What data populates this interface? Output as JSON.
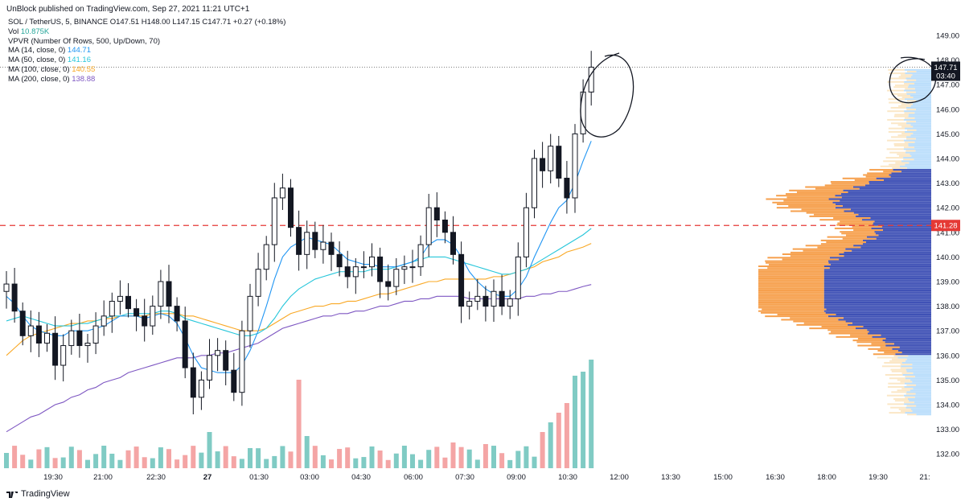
{
  "header": {
    "published": "UnBlock published on TradingView.com, Sep 27, 2021 11:21 UTC+1"
  },
  "legend": {
    "symbol_line": "SOL / TetherUS, 5, BINANCE  O147.51  H148.00  L147.15  C147.71  +0.27 (+0.18%)",
    "vol_label": "Vol",
    "vol_value": "10.875K",
    "vpvr": "VPVR (Number Of Rows, 500, Up/Down, 70)",
    "ma14_label": "MA (14, close, 0)",
    "ma14_value": "144.71",
    "ma50_label": "MA (50, close, 0)",
    "ma50_value": "141.16",
    "ma100_label": "MA (100, close, 0)",
    "ma100_value": "140.55",
    "ma200_label": "MA (200, close, 0)",
    "ma200_value": "138.88"
  },
  "footer": {
    "brand": "TradingView"
  },
  "colors": {
    "ma14": "#2196f3",
    "ma50": "#26c6da",
    "ma100": "#f9a825",
    "ma200": "#7e57c2",
    "vol_up": "#80cbc4",
    "vol_down": "#f4a5a5",
    "vp_up": "#f6a04d",
    "vp_down": "#3f51b5",
    "vp_va_up": "#fbe7c6",
    "vp_va_down": "#bbdefb",
    "dashed_line": "#e53935",
    "annotation": "#131722"
  },
  "chart_data": {
    "type": "candlestick",
    "y_ticks": [
      "149.00",
      "148.00",
      "147.00",
      "146.00",
      "145.00",
      "144.00",
      "143.00",
      "142.00",
      "141.00",
      "140.00",
      "139.00",
      "138.00",
      "137.00",
      "136.00",
      "135.00",
      "134.00",
      "133.00",
      "132.00"
    ],
    "ylim": [
      131.5,
      149.5
    ],
    "x_ticks": [
      "19:30",
      "21:00",
      "22:30",
      "27",
      "01:30",
      "03:00",
      "04:30",
      "06:00",
      "07:30",
      "09:00",
      "10:30",
      "12:00",
      "13:30",
      "15:00",
      "16:30",
      "18:00",
      "19:30",
      "21:"
    ],
    "last_price_label": "147.71",
    "countdown_label": "03:40",
    "level_label": "141.28",
    "level_value": 141.28,
    "last_price": 147.71,
    "close_path": [
      138.9,
      137.8,
      136.8,
      137.2,
      136.5,
      136.9,
      135.6,
      136.4,
      137.0,
      136.4,
      136.5,
      137.2,
      137.6,
      138.2,
      138.4,
      137.9,
      137.6,
      137.2,
      138.0,
      139.0,
      138.0,
      137.4,
      135.5,
      134.3,
      135.0,
      136.0,
      136.2,
      135.4,
      134.5,
      137.0,
      138.4,
      139.5,
      140.5,
      142.4,
      142.8,
      141.2,
      140.1,
      141.0,
      140.3,
      140.6,
      140.1,
      139.6,
      139.2,
      139.6,
      139.6,
      140.0,
      139.0,
      138.8,
      139.5,
      139.6,
      139.6,
      140.5,
      142.0,
      141.5,
      141.0,
      140.1,
      138.0,
      138.2,
      138.4,
      138.0,
      138.6,
      138.0,
      138.3,
      140.0,
      142.0,
      144.0,
      143.5,
      144.5,
      143.2,
      142.4,
      145.0,
      146.7,
      147.71
    ],
    "ma14": [
      138.4,
      138.1,
      137.6,
      137.2,
      137.0,
      136.9,
      136.8,
      136.8,
      137.0,
      137.0,
      137.0,
      137.1,
      137.2,
      137.4,
      137.6,
      137.6,
      137.6,
      137.5,
      137.6,
      137.7,
      137.6,
      137.3,
      136.7,
      136.0,
      135.5,
      135.4,
      135.3,
      135.3,
      135.3,
      135.6,
      136.2,
      137.0,
      138.0,
      139.1,
      140.0,
      140.4,
      140.6,
      140.8,
      140.7,
      140.6,
      140.5,
      140.2,
      139.9,
      139.8,
      139.7,
      139.7,
      139.6,
      139.6,
      139.6,
      139.7,
      139.8,
      140.0,
      140.5,
      140.7,
      140.7,
      140.5,
      140.0,
      139.4,
      139.0,
      138.7,
      138.5,
      138.4,
      138.4,
      138.7,
      139.2,
      140.0,
      140.7,
      141.4,
      142.0,
      142.3,
      143.0,
      143.9,
      144.71
    ],
    "ma50": [
      137.4,
      137.5,
      137.6,
      137.5,
      137.4,
      137.3,
      137.2,
      137.2,
      137.2,
      137.3,
      137.3,
      137.4,
      137.5,
      137.6,
      137.6,
      137.7,
      137.7,
      137.7,
      137.7,
      137.8,
      137.8,
      137.7,
      137.5,
      137.4,
      137.3,
      137.2,
      137.1,
      137.0,
      136.9,
      136.8,
      136.8,
      136.9,
      137.1,
      137.5,
      138.0,
      138.4,
      138.7,
      138.9,
      139.1,
      139.2,
      139.3,
      139.4,
      139.4,
      139.4,
      139.4,
      139.5,
      139.5,
      139.5,
      139.6,
      139.7,
      139.8,
      139.9,
      140.0,
      140.0,
      140.0,
      139.9,
      139.8,
      139.7,
      139.6,
      139.5,
      139.4,
      139.3,
      139.3,
      139.4,
      139.5,
      139.7,
      139.9,
      140.1,
      140.3,
      140.5,
      140.7,
      140.9,
      141.16
    ],
    "ma100": [
      136.0,
      136.3,
      136.6,
      136.8,
      136.9,
      137.0,
      137.1,
      137.2,
      137.3,
      137.3,
      137.4,
      137.4,
      137.5,
      137.5,
      137.6,
      137.6,
      137.6,
      137.6,
      137.7,
      137.7,
      137.7,
      137.7,
      137.6,
      137.6,
      137.5,
      137.4,
      137.3,
      137.2,
      137.1,
      137.0,
      137.0,
      137.0,
      137.1,
      137.3,
      137.5,
      137.7,
      137.8,
      137.9,
      138.0,
      138.0,
      138.1,
      138.1,
      138.2,
      138.2,
      138.3,
      138.4,
      138.5,
      138.5,
      138.6,
      138.7,
      138.8,
      138.9,
      139.0,
      139.0,
      139.1,
      139.1,
      139.1,
      139.1,
      139.1,
      139.1,
      139.2,
      139.2,
      139.3,
      139.4,
      139.5,
      139.6,
      139.8,
      139.9,
      140.0,
      140.2,
      140.3,
      140.4,
      140.55
    ],
    "ma200": [
      132.9,
      133.1,
      133.3,
      133.5,
      133.6,
      133.8,
      134.0,
      134.1,
      134.3,
      134.4,
      134.6,
      134.7,
      134.9,
      135.0,
      135.1,
      135.3,
      135.4,
      135.5,
      135.6,
      135.7,
      135.8,
      135.9,
      135.9,
      135.9,
      136.0,
      136.0,
      136.1,
      136.1,
      136.2,
      136.3,
      136.4,
      136.5,
      136.7,
      136.9,
      137.1,
      137.2,
      137.3,
      137.4,
      137.5,
      137.6,
      137.6,
      137.7,
      137.7,
      137.8,
      137.8,
      137.9,
      138.0,
      138.0,
      138.1,
      138.2,
      138.2,
      138.3,
      138.3,
      138.4,
      138.4,
      138.4,
      138.4,
      138.3,
      138.3,
      138.3,
      138.3,
      138.3,
      138.3,
      138.3,
      138.4,
      138.4,
      138.5,
      138.5,
      138.6,
      138.6,
      138.7,
      138.8,
      138.88
    ]
  }
}
